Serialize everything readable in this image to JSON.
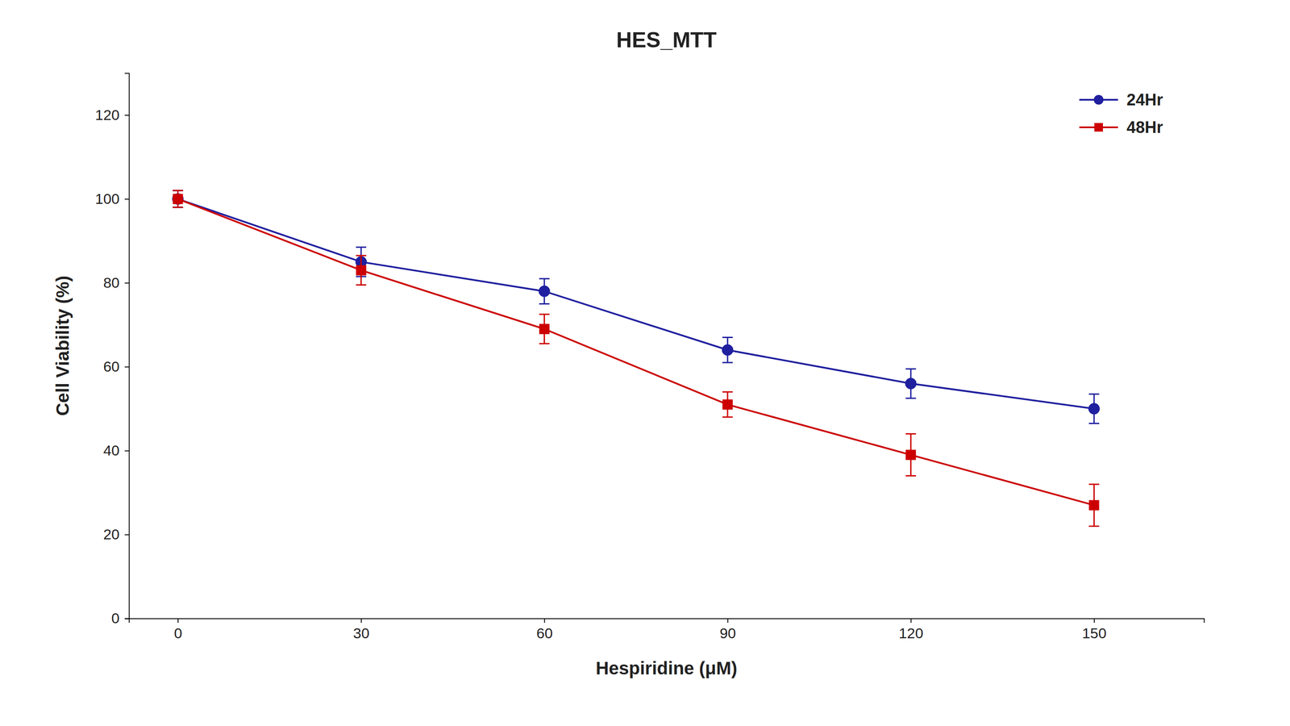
{
  "chart_data": {
    "type": "line",
    "title": "HES_MTT",
    "x_label": "Hespiridine (μM)",
    "y_label": "Cell Viability (%)",
    "x": [
      0,
      30,
      60,
      90,
      120,
      150
    ],
    "series": [
      {
        "name": "24Hr",
        "color": "#1f1f9f",
        "marker": "circle",
        "values": [
          100,
          85,
          78,
          64,
          56,
          50
        ],
        "errors": [
          2.0,
          3.5,
          3.0,
          3.0,
          3.5,
          3.5
        ]
      },
      {
        "name": "48Hr",
        "color": "#cc0000",
        "marker": "square",
        "values": [
          100,
          83,
          69,
          51,
          39,
          27
        ],
        "errors": [
          2.0,
          3.5,
          3.5,
          3.0,
          5.0,
          5.0
        ]
      }
    ],
    "xlim": [
      -8,
      168
    ],
    "xticks": [
      0,
      30,
      60,
      90,
      120,
      150
    ],
    "ylim": [
      0,
      130
    ],
    "yticks": [
      0,
      20,
      40,
      60,
      80,
      100,
      120
    ],
    "grid": false,
    "legend": "upper right"
  }
}
